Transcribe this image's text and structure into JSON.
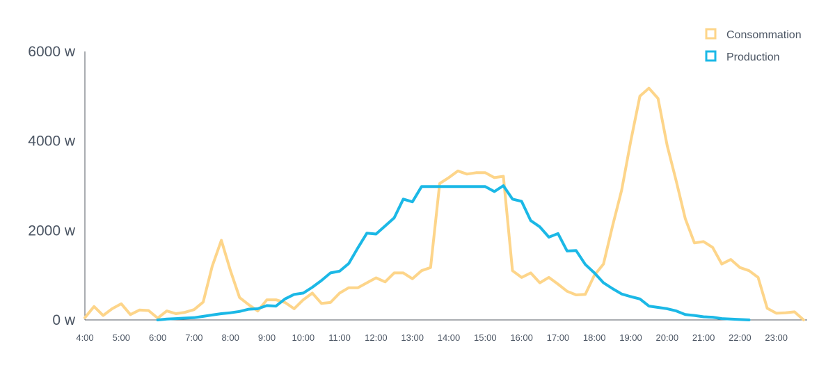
{
  "chart_data": {
    "type": "line",
    "title": "",
    "xlabel": "",
    "ylabel": "",
    "ylim": [
      0,
      6000
    ],
    "y_ticks": [
      {
        "value": 0,
        "label": "0 w"
      },
      {
        "value": 2000,
        "label": "2000 w"
      },
      {
        "value": 4000,
        "label": "4000 w"
      },
      {
        "value": 6000,
        "label": "6000 w"
      }
    ],
    "x_tick_labels": [
      "4:00",
      "5:00",
      "6:00",
      "7:00",
      "8:00",
      "9:00",
      "10:00",
      "11:00",
      "12:00",
      "13:00",
      "14:00",
      "15:00",
      "16:00",
      "17:00",
      "18:00",
      "19:00",
      "20:00",
      "21:00",
      "22:00",
      "23:00"
    ],
    "grid": false,
    "legend_position": "top-right",
    "series": [
      {
        "name": "Consommation",
        "color": "#fdd58a",
        "points": [
          [
            "4:00",
            50
          ],
          [
            "4:15",
            300
          ],
          [
            "4:30",
            100
          ],
          [
            "4:45",
            250
          ],
          [
            "5:00",
            360
          ],
          [
            "5:15",
            120
          ],
          [
            "5:30",
            220
          ],
          [
            "5:45",
            210
          ],
          [
            "6:00",
            40
          ],
          [
            "6:15",
            200
          ],
          [
            "6:30",
            140
          ],
          [
            "6:45",
            170
          ],
          [
            "7:00",
            230
          ],
          [
            "7:15",
            400
          ],
          [
            "7:30",
            1200
          ],
          [
            "7:45",
            1780
          ],
          [
            "8:00",
            1100
          ],
          [
            "8:15",
            500
          ],
          [
            "8:30",
            340
          ],
          [
            "8:45",
            200
          ],
          [
            "9:00",
            450
          ],
          [
            "9:15",
            450
          ],
          [
            "9:30",
            390
          ],
          [
            "9:45",
            250
          ],
          [
            "10:00",
            450
          ],
          [
            "10:15",
            600
          ],
          [
            "10:30",
            370
          ],
          [
            "10:45",
            390
          ],
          [
            "11:00",
            600
          ],
          [
            "11:15",
            720
          ],
          [
            "11:30",
            720
          ],
          [
            "11:45",
            830
          ],
          [
            "12:00",
            940
          ],
          [
            "12:15",
            850
          ],
          [
            "12:30",
            1050
          ],
          [
            "12:45",
            1050
          ],
          [
            "13:00",
            920
          ],
          [
            "13:15",
            1100
          ],
          [
            "13:30",
            1170
          ],
          [
            "13:45",
            3050
          ],
          [
            "14:00",
            3180
          ],
          [
            "14:15",
            3330
          ],
          [
            "14:30",
            3260
          ],
          [
            "14:45",
            3290
          ],
          [
            "15:00",
            3290
          ],
          [
            "15:15",
            3180
          ],
          [
            "15:30",
            3210
          ],
          [
            "15:45",
            1100
          ],
          [
            "16:00",
            950
          ],
          [
            "16:15",
            1050
          ],
          [
            "16:30",
            830
          ],
          [
            "16:45",
            950
          ],
          [
            "17:00",
            800
          ],
          [
            "17:15",
            640
          ],
          [
            "17:30",
            560
          ],
          [
            "17:45",
            570
          ],
          [
            "18:00",
            1000
          ],
          [
            "18:15",
            1250
          ],
          [
            "18:30",
            2100
          ],
          [
            "18:45",
            2900
          ],
          [
            "19:00",
            4000
          ],
          [
            "19:15",
            5000
          ],
          [
            "19:30",
            5180
          ],
          [
            "19:45",
            4950
          ],
          [
            "20:00",
            3900
          ],
          [
            "20:15",
            3100
          ],
          [
            "20:30",
            2260
          ],
          [
            "20:45",
            1720
          ],
          [
            "21:00",
            1750
          ],
          [
            "21:15",
            1620
          ],
          [
            "21:30",
            1250
          ],
          [
            "21:45",
            1350
          ],
          [
            "22:00",
            1170
          ],
          [
            "22:15",
            1100
          ],
          [
            "22:30",
            950
          ],
          [
            "22:45",
            260
          ],
          [
            "23:00",
            150
          ],
          [
            "23:15",
            160
          ],
          [
            "23:30",
            180
          ],
          [
            "23:45",
            0
          ]
        ]
      },
      {
        "name": "Production",
        "color": "#1bb8e6",
        "points": [
          [
            "6:00",
            0
          ],
          [
            "6:15",
            20
          ],
          [
            "6:30",
            30
          ],
          [
            "6:45",
            40
          ],
          [
            "7:00",
            50
          ],
          [
            "7:15",
            80
          ],
          [
            "7:30",
            110
          ],
          [
            "7:45",
            140
          ],
          [
            "8:00",
            160
          ],
          [
            "8:15",
            190
          ],
          [
            "8:30",
            240
          ],
          [
            "8:45",
            250
          ],
          [
            "9:00",
            320
          ],
          [
            "9:15",
            310
          ],
          [
            "9:30",
            470
          ],
          [
            "9:45",
            570
          ],
          [
            "10:00",
            600
          ],
          [
            "10:15",
            730
          ],
          [
            "10:30",
            880
          ],
          [
            "10:45",
            1050
          ],
          [
            "11:00",
            1090
          ],
          [
            "11:15",
            1260
          ],
          [
            "11:30",
            1610
          ],
          [
            "11:45",
            1940
          ],
          [
            "12:00",
            1920
          ],
          [
            "12:15",
            2100
          ],
          [
            "12:30",
            2280
          ],
          [
            "12:45",
            2700
          ],
          [
            "13:00",
            2640
          ],
          [
            "13:15",
            2980
          ],
          [
            "13:30",
            2980
          ],
          [
            "13:45",
            2980
          ],
          [
            "14:00",
            2980
          ],
          [
            "14:15",
            2980
          ],
          [
            "14:30",
            2980
          ],
          [
            "14:45",
            2980
          ],
          [
            "15:00",
            2980
          ],
          [
            "15:15",
            2870
          ],
          [
            "15:30",
            3000
          ],
          [
            "15:45",
            2700
          ],
          [
            "16:00",
            2650
          ],
          [
            "16:15",
            2220
          ],
          [
            "16:30",
            2080
          ],
          [
            "16:45",
            1850
          ],
          [
            "17:00",
            1930
          ],
          [
            "17:15",
            1540
          ],
          [
            "17:30",
            1550
          ],
          [
            "17:45",
            1240
          ],
          [
            "18:00",
            1050
          ],
          [
            "18:15",
            830
          ],
          [
            "18:30",
            700
          ],
          [
            "18:45",
            580
          ],
          [
            "19:00",
            520
          ],
          [
            "19:15",
            470
          ],
          [
            "19:30",
            310
          ],
          [
            "19:45",
            280
          ],
          [
            "20:00",
            250
          ],
          [
            "20:15",
            200
          ],
          [
            "20:30",
            120
          ],
          [
            "20:45",
            100
          ],
          [
            "21:00",
            70
          ],
          [
            "21:15",
            60
          ],
          [
            "21:30",
            30
          ],
          [
            "21:45",
            20
          ],
          [
            "22:00",
            10
          ],
          [
            "22:15",
            0
          ]
        ]
      }
    ]
  }
}
